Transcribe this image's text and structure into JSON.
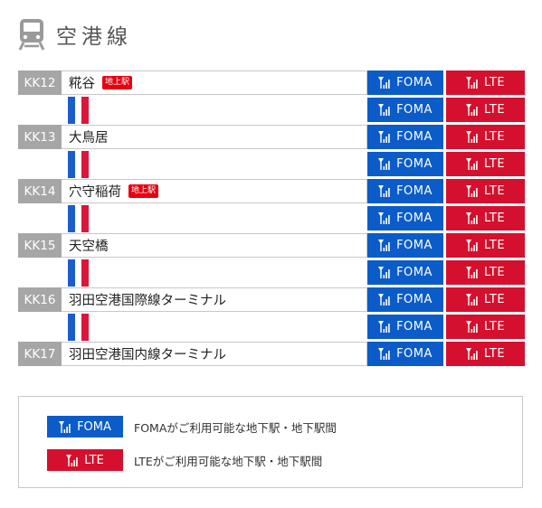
{
  "header": {
    "title": "空港線",
    "icon": "train-icon"
  },
  "colors": {
    "foma": "#0b5cc8",
    "lte": "#d5102e",
    "line_blue": "#1c5dcc",
    "line_red": "#d9173a",
    "code_bg": "#a6a6a6",
    "tag_bg": "#e60012"
  },
  "badges": {
    "foma_label": "FOMA",
    "lte_label": "LTE",
    "icon": "antenna-signal-icon"
  },
  "stations": [
    {
      "code": "KK12",
      "name": "糀谷",
      "tag": "地上駅"
    },
    {
      "code": "KK13",
      "name": "大鳥居",
      "tag": ""
    },
    {
      "code": "KK14",
      "name": "穴守稲荷",
      "tag": "地上駅"
    },
    {
      "code": "KK15",
      "name": "天空橋",
      "tag": ""
    },
    {
      "code": "KK16",
      "name": "羽田空港国際線ターミナル",
      "tag": ""
    },
    {
      "code": "KK17",
      "name": "羽田空港国内線ターミナル",
      "tag": ""
    }
  ],
  "legend": {
    "foma_desc": "FOMAがご利用可能な地下駅・地下駅間",
    "lte_desc": "LTEがご利用可能な地下駅・地下駅間"
  }
}
